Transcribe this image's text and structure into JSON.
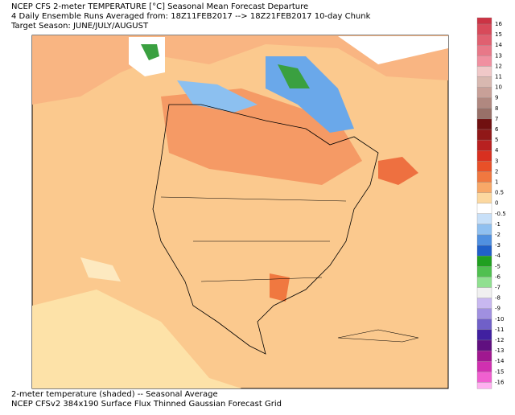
{
  "header": {
    "lines": [
      "NCEP CFS 2-meter TEMPERATURE [°C] Seasonal Mean Forecast Departure",
      "4 Daily Ensemble Runs Averaged from: 18Z11FEB2017 --> 18Z21FEB2017 10-day Chunk",
      "Target Season: JUNE/JULY/AUGUST"
    ]
  },
  "colorbar": {
    "labels": [
      16,
      15,
      14,
      13,
      12,
      11,
      10,
      9,
      8,
      7,
      6,
      5,
      4,
      3,
      2,
      1,
      0.5,
      0,
      -0.5,
      -1,
      -2,
      -3,
      -4,
      -5,
      -6,
      -7,
      -8,
      -9,
      -10,
      -11,
      -12,
      -13,
      -14,
      -15,
      -16
    ],
    "colors": [
      "#cc3344",
      "#d84a5a",
      "#e06070",
      "#e87888",
      "#f090a0",
      "#f0c8c8",
      "#d8b8b0",
      "#c8a098",
      "#b08880",
      "#987068",
      "#701010",
      "#901818",
      "#b82020",
      "#d83020",
      "#e85028",
      "#f07840",
      "#f8a868",
      "#fcd8a0",
      "#ffffff",
      "#c8e0f8",
      "#90c0f0",
      "#5090e0",
      "#2060c8",
      "#20a020",
      "#50c050",
      "#90e090",
      "#f0f0f0",
      "#c8b8f0",
      "#a090e0",
      "#7060c8",
      "#4020a0",
      "#601080",
      "#a01890",
      "#d030b0",
      "#f060d0",
      "#ffb0f0"
    ]
  },
  "footer": {
    "lines": [
      "2-meter temperature (shaded) -- Seasonal Average",
      "NCEP CFSv2 384x190 Surface Flux Thinned Gaussian Forecast Grid"
    ]
  }
}
